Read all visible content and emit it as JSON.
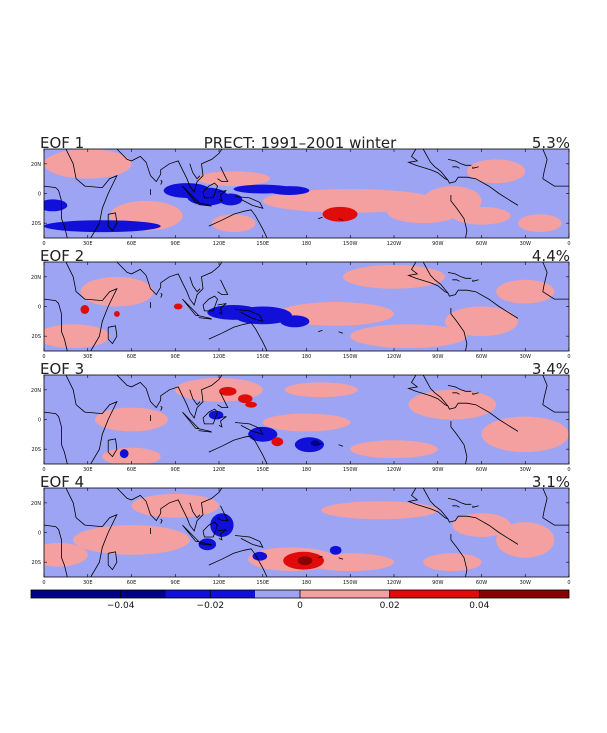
{
  "chart_data": {
    "type": "heatmap",
    "title": "PRECT: 1991–2001 winter",
    "colors": {
      "neg3": "#00008b",
      "neg2": "#1010d8",
      "neg1": "#9ea4f4",
      "pos1": "#f4a0a0",
      "pos2": "#e00c0c",
      "pos3": "#8b0000",
      "coast": "#000000"
    },
    "x_ticks": [
      "0",
      "30E",
      "60E",
      "90E",
      "120E",
      "150E",
      "180",
      "150W",
      "120W",
      "90W",
      "60W",
      "30W",
      "0"
    ],
    "y_ticks": [
      "20N",
      "0",
      "20S"
    ],
    "panels": [
      {
        "label": "EOF 1",
        "variance": "5.3%",
        "neg_blobs": [
          [
            6,
            -8,
            10,
            4
          ],
          [
            98,
            2,
            16,
            5
          ],
          [
            112,
            -2,
            14,
            6
          ],
          [
            128,
            -4,
            8,
            4
          ],
          [
            150,
            3,
            20,
            3
          ],
          [
            168,
            2,
            14,
            3
          ],
          [
            40,
            -22,
            40,
            4
          ]
        ],
        "pos_blobs": [
          [
            30,
            20,
            30,
            10
          ],
          [
            70,
            -15,
            25,
            10
          ],
          [
            130,
            10,
            25,
            5
          ],
          [
            130,
            -20,
            15,
            6
          ],
          [
            210,
            -5,
            60,
            8
          ],
          [
            280,
            -5,
            20,
            10
          ],
          [
            300,
            -15,
            20,
            6
          ],
          [
            310,
            15,
            20,
            8
          ],
          [
            260,
            -12,
            25,
            8
          ],
          [
            340,
            -20,
            15,
            6
          ]
        ],
        "core_blobs": [
          [
            203,
            -14,
            12,
            5
          ]
        ],
        "deep_blobs": []
      },
      {
        "label": "EOF 2",
        "variance": "4.4%",
        "neg_blobs": [
          [
            130,
            -4,
            18,
            5
          ],
          [
            150,
            -6,
            20,
            6
          ],
          [
            172,
            -10,
            10,
            4
          ]
        ],
        "pos_blobs": [
          [
            50,
            10,
            25,
            10
          ],
          [
            200,
            -5,
            40,
            8
          ],
          [
            240,
            20,
            35,
            8
          ],
          [
            250,
            -20,
            40,
            8
          ],
          [
            300,
            -10,
            25,
            10
          ],
          [
            330,
            10,
            20,
            8
          ],
          [
            20,
            -20,
            25,
            8
          ]
        ],
        "core_blobs": [
          [
            28,
            -2,
            3,
            3
          ],
          [
            92,
            0,
            3,
            2
          ],
          [
            50,
            -5,
            2,
            2
          ]
        ],
        "deep_blobs": []
      },
      {
        "label": "EOF 3",
        "variance": "3.4%",
        "neg_blobs": [
          [
            182,
            -17,
            10,
            5
          ],
          [
            118,
            3,
            5,
            3
          ],
          [
            55,
            -23,
            3,
            3
          ],
          [
            150,
            -10,
            10,
            5
          ]
        ],
        "pos_blobs": [
          [
            120,
            20,
            30,
            8
          ],
          [
            60,
            0,
            25,
            8
          ],
          [
            180,
            -2,
            30,
            6
          ],
          [
            190,
            20,
            25,
            5
          ],
          [
            280,
            10,
            30,
            10
          ],
          [
            330,
            -10,
            30,
            12
          ],
          [
            240,
            -20,
            30,
            6
          ],
          [
            60,
            -25,
            20,
            6
          ]
        ],
        "core_blobs": [
          [
            126,
            19,
            6,
            3
          ],
          [
            138,
            14,
            5,
            3
          ],
          [
            160,
            -15,
            4,
            3
          ],
          [
            142,
            10,
            4,
            2
          ]
        ],
        "deep_blobs": [
          [
            186,
            -16,
            3,
            2
          ]
        ]
      },
      {
        "label": "EOF 4",
        "variance": "3.1%",
        "neg_blobs": [
          [
            122,
            5,
            8,
            8
          ],
          [
            148,
            -16,
            5,
            3
          ],
          [
            112,
            -8,
            6,
            4
          ],
          [
            200,
            -12,
            4,
            3
          ]
        ],
        "pos_blobs": [
          [
            60,
            -5,
            40,
            10
          ],
          [
            90,
            18,
            30,
            8
          ],
          [
            170,
            -18,
            30,
            8
          ],
          [
            210,
            -20,
            30,
            6
          ],
          [
            230,
            15,
            40,
            6
          ],
          [
            330,
            -5,
            20,
            12
          ],
          [
            300,
            5,
            20,
            8
          ],
          [
            280,
            -20,
            20,
            6
          ],
          [
            10,
            -15,
            20,
            8
          ]
        ],
        "core_blobs": [
          [
            178,
            -19,
            14,
            6
          ]
        ],
        "deep_blobs": [
          [
            179,
            -19,
            5,
            3
          ]
        ]
      }
    ],
    "colorbar": {
      "ticks": [
        "−0.04",
        "−0.02",
        "0",
        "0.02",
        "0.04"
      ],
      "tick_values": [
        -0.04,
        -0.02,
        0,
        0.02,
        0.04
      ],
      "range": [
        -0.06,
        0.06
      ],
      "segments": [
        {
          "from": -0.06,
          "to": -0.03,
          "color": "#00008b"
        },
        {
          "from": -0.03,
          "to": -0.01,
          "color": "#1010d8"
        },
        {
          "from": -0.01,
          "to": 0.0,
          "color": "#9ea4f4"
        },
        {
          "from": 0.0,
          "to": 0.02,
          "color": "#f4a0a0"
        },
        {
          "from": 0.02,
          "to": 0.04,
          "color": "#e00c0c"
        },
        {
          "from": 0.04,
          "to": 0.06,
          "color": "#8b0000"
        }
      ]
    }
  }
}
